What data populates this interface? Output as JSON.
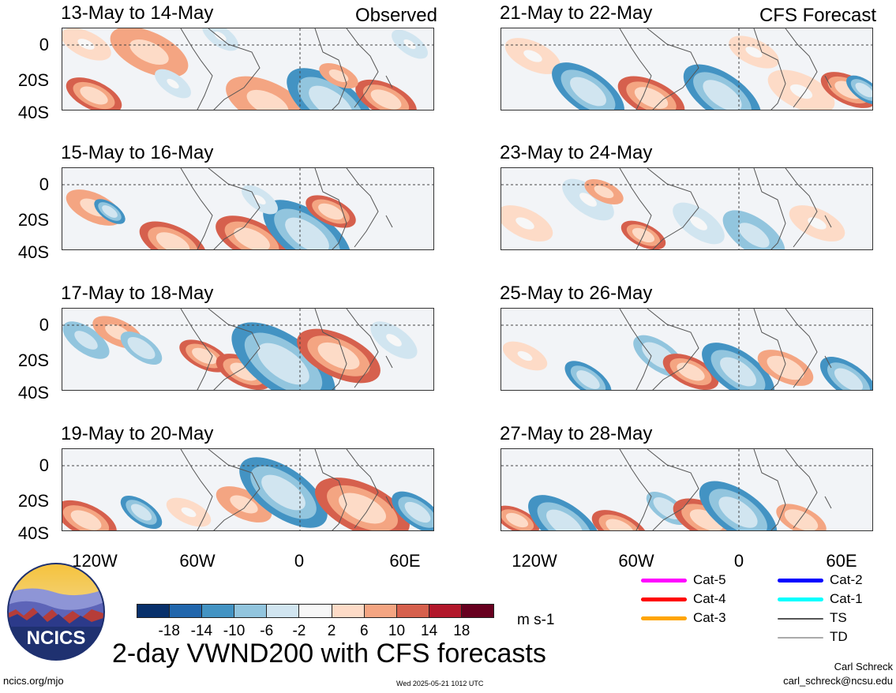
{
  "panels": [
    {
      "title": "13-May to 14-May",
      "tag": "Observed"
    },
    {
      "title": "21-May to 22-May",
      "tag": "CFS Forecast"
    },
    {
      "title": "15-May to 16-May",
      "tag": ""
    },
    {
      "title": "23-May to 24-May",
      "tag": ""
    },
    {
      "title": "17-May to 18-May",
      "tag": ""
    },
    {
      "title": "25-May to 26-May",
      "tag": ""
    },
    {
      "title": "19-May to 20-May",
      "tag": ""
    },
    {
      "title": "27-May to 28-May",
      "tag": ""
    }
  ],
  "axes": {
    "y_ticks": [
      "0",
      "20S",
      "40S"
    ],
    "x_ticks": [
      "120W",
      "60W",
      "0",
      "60E"
    ]
  },
  "colorbar": {
    "colors": [
      "#08306b",
      "#2166ac",
      "#4393c3",
      "#92c5de",
      "#d1e5f0",
      "#f7f7f7",
      "#fddbc7",
      "#f4a582",
      "#d6604d",
      "#b2182b",
      "#67001f"
    ],
    "labels": [
      "-18",
      "-14",
      "-10",
      "-6",
      "-2",
      "2",
      "6",
      "10",
      "14",
      "18"
    ],
    "unit": "m s-1"
  },
  "legend": {
    "items": [
      {
        "label": "Cat-5",
        "color": "#ff00ff"
      },
      {
        "label": "Cat-4",
        "color": "#ff0000"
      },
      {
        "label": "Cat-3",
        "color": "#ffa500"
      },
      {
        "label": "Cat-2",
        "color": "#0000ff"
      },
      {
        "label": "Cat-1",
        "color": "#00ffff"
      },
      {
        "label": "TS",
        "color": "#555555"
      },
      {
        "label": "TD",
        "color": "#aaaaaa"
      }
    ]
  },
  "logo": {
    "text": "NCICS"
  },
  "main_title": "2-day VWND200 with CFS forecasts",
  "footer": {
    "site": "ncics.org/mjo",
    "timestamp": "Wed 2025-05-21 1012 UTC",
    "author": "Carl Schreck",
    "email": "carl_schreck@ncsu.edu"
  }
}
